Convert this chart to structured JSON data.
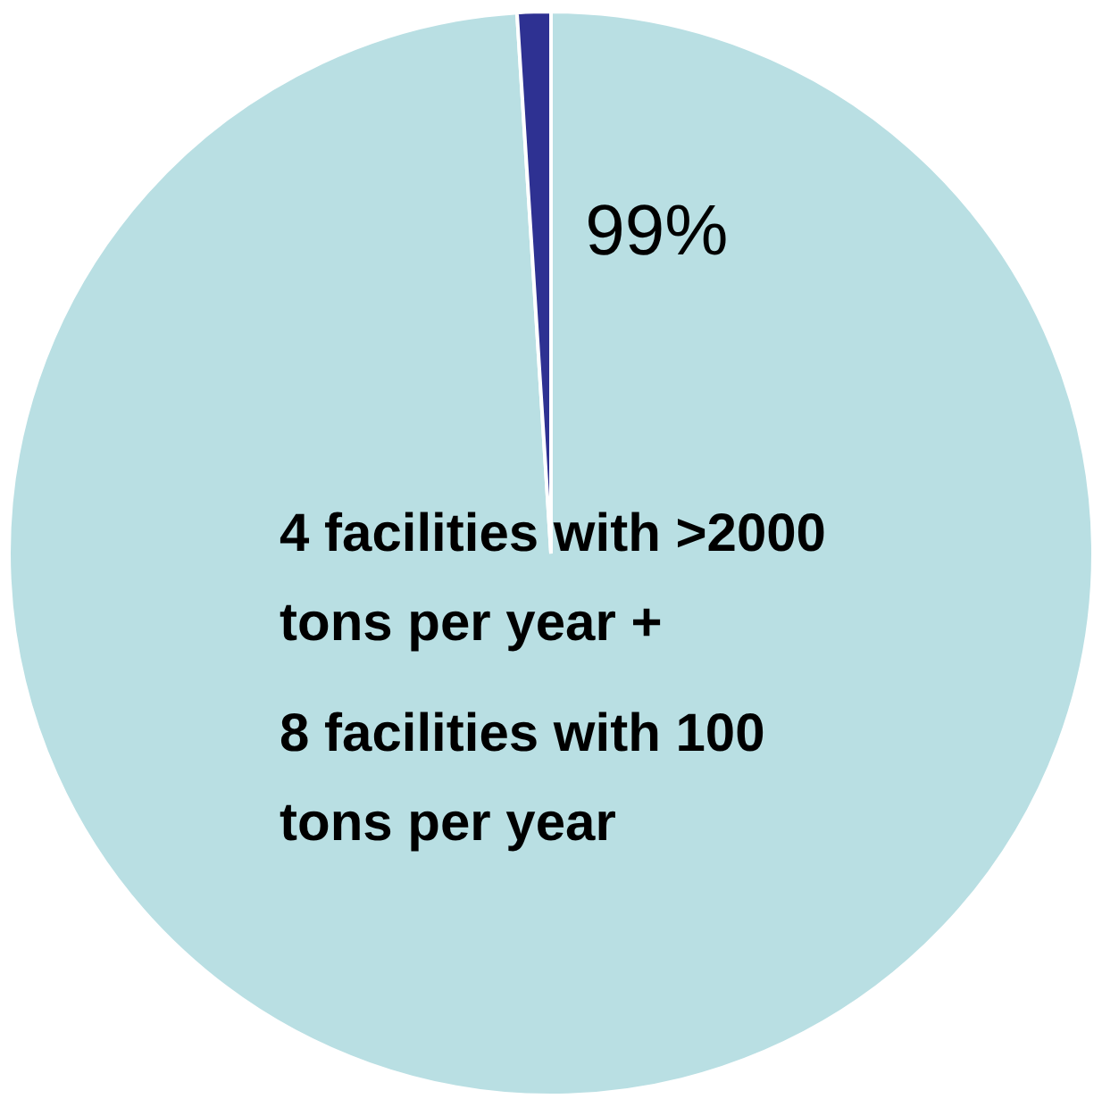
{
  "chart_data": {
    "type": "pie",
    "categories": [
      "4 facilities with >2000 tons per year +\n8 facilities with 100 tons per year",
      null
    ],
    "values": [
      99,
      1
    ],
    "colors": [
      "#b9dfe3",
      "#2e3192"
    ],
    "value_labels": [
      "99%",
      null
    ],
    "legend": false
  }
}
